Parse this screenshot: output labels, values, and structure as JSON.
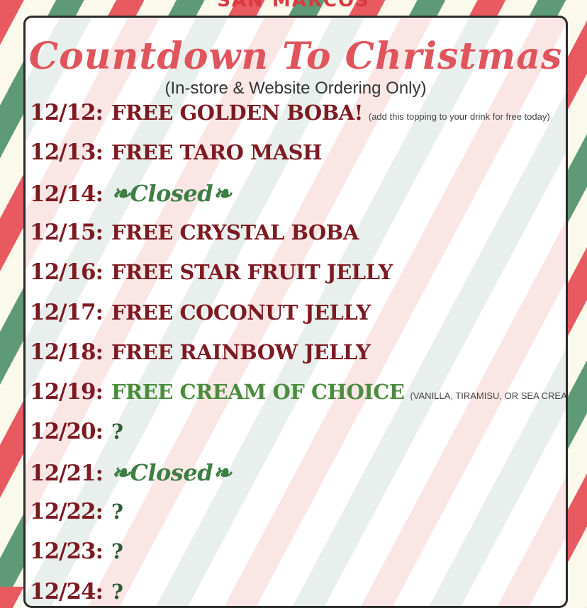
{
  "brand": "SAN MARCOS",
  "title": "Countdown To Christmas",
  "subtitle": "(In-store & Website Ordering Only)",
  "colors": {
    "red": "#e85a5f",
    "green": "#5f9a76",
    "maroon": "#7d1a22",
    "title": "#e0555c"
  },
  "rows": [
    {
      "date": "12/12:",
      "item": "FREE GOLDEN BOBA!",
      "note": "(add this topping to your drink for free today)",
      "style": ""
    },
    {
      "date": "12/13:",
      "item": "FREE TARO MASH",
      "note": "",
      "style": ""
    },
    {
      "date": "12/14:",
      "item": "❧Closed❧",
      "note": "",
      "style": "closed"
    },
    {
      "date": "12/15:",
      "item": "FREE CRYSTAL BOBA",
      "note": "",
      "style": ""
    },
    {
      "date": "12/16:",
      "item": "FREE STAR FRUIT JELLY",
      "note": "",
      "style": ""
    },
    {
      "date": "12/17:",
      "item": "FREE COCONUT JELLY",
      "note": "",
      "style": ""
    },
    {
      "date": "12/18:",
      "item": "FREE RAINBOW JELLY",
      "note": "",
      "style": ""
    },
    {
      "date": "12/19:",
      "item": "FREE CREAM OF CHOICE",
      "note": "(VANILLA, TIRAMISU, OR SEA CREAM)",
      "style": "green"
    },
    {
      "date": "12/20:",
      "item": "?",
      "note": "",
      "style": "q"
    },
    {
      "date": "12/21:",
      "item": "❧Closed❧",
      "note": "",
      "style": "closed"
    },
    {
      "date": "12/22:",
      "item": "?",
      "note": "",
      "style": "q"
    },
    {
      "date": "12/23:",
      "item": "?",
      "note": "",
      "style": "q"
    },
    {
      "date": "12/24:",
      "item": "?",
      "note": "",
      "style": "q"
    }
  ]
}
